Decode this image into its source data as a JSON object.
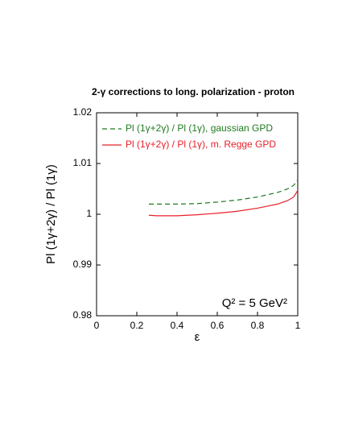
{
  "chart_data": {
    "type": "line",
    "title": "2-γ corrections to long. polarization - proton",
    "x_label": "ε",
    "y_label": "Pl (1γ+2γ) / Pl (1γ)",
    "annotation": "Q² = 5 GeV²",
    "x": [
      0.26,
      0.3,
      0.4,
      0.5,
      0.6,
      0.7,
      0.8,
      0.9,
      0.95,
      0.98,
      1
    ],
    "series": [
      {
        "name": "Pl (1γ+2γ) / Pl (1γ), gaussian GPD",
        "color": "#1e7b1e",
        "dashed": true,
        "values": [
          1.002,
          1.002,
          1.002,
          1.0021,
          1.0024,
          1.0028,
          1.0034,
          1.0043,
          1.005,
          1.0057,
          1.0068
        ]
      },
      {
        "name": "Pl (1γ+2γ) / Pl (1γ), m. Regge GPD",
        "color": "#e8202a",
        "dashed": false,
        "values": [
          0.9998,
          0.9997,
          0.9997,
          0.9999,
          1.0002,
          1.0006,
          1.0012,
          1.002,
          1.0027,
          1.0034,
          1.0047
        ]
      }
    ],
    "xlim": [
      0,
      1
    ],
    "xticks": [
      0,
      0.2,
      0.4,
      0.6,
      0.8,
      1
    ],
    "ylim": [
      0.98,
      1.02
    ],
    "yticks": [
      0.98,
      0.99,
      1,
      1.01,
      1.02
    ]
  }
}
